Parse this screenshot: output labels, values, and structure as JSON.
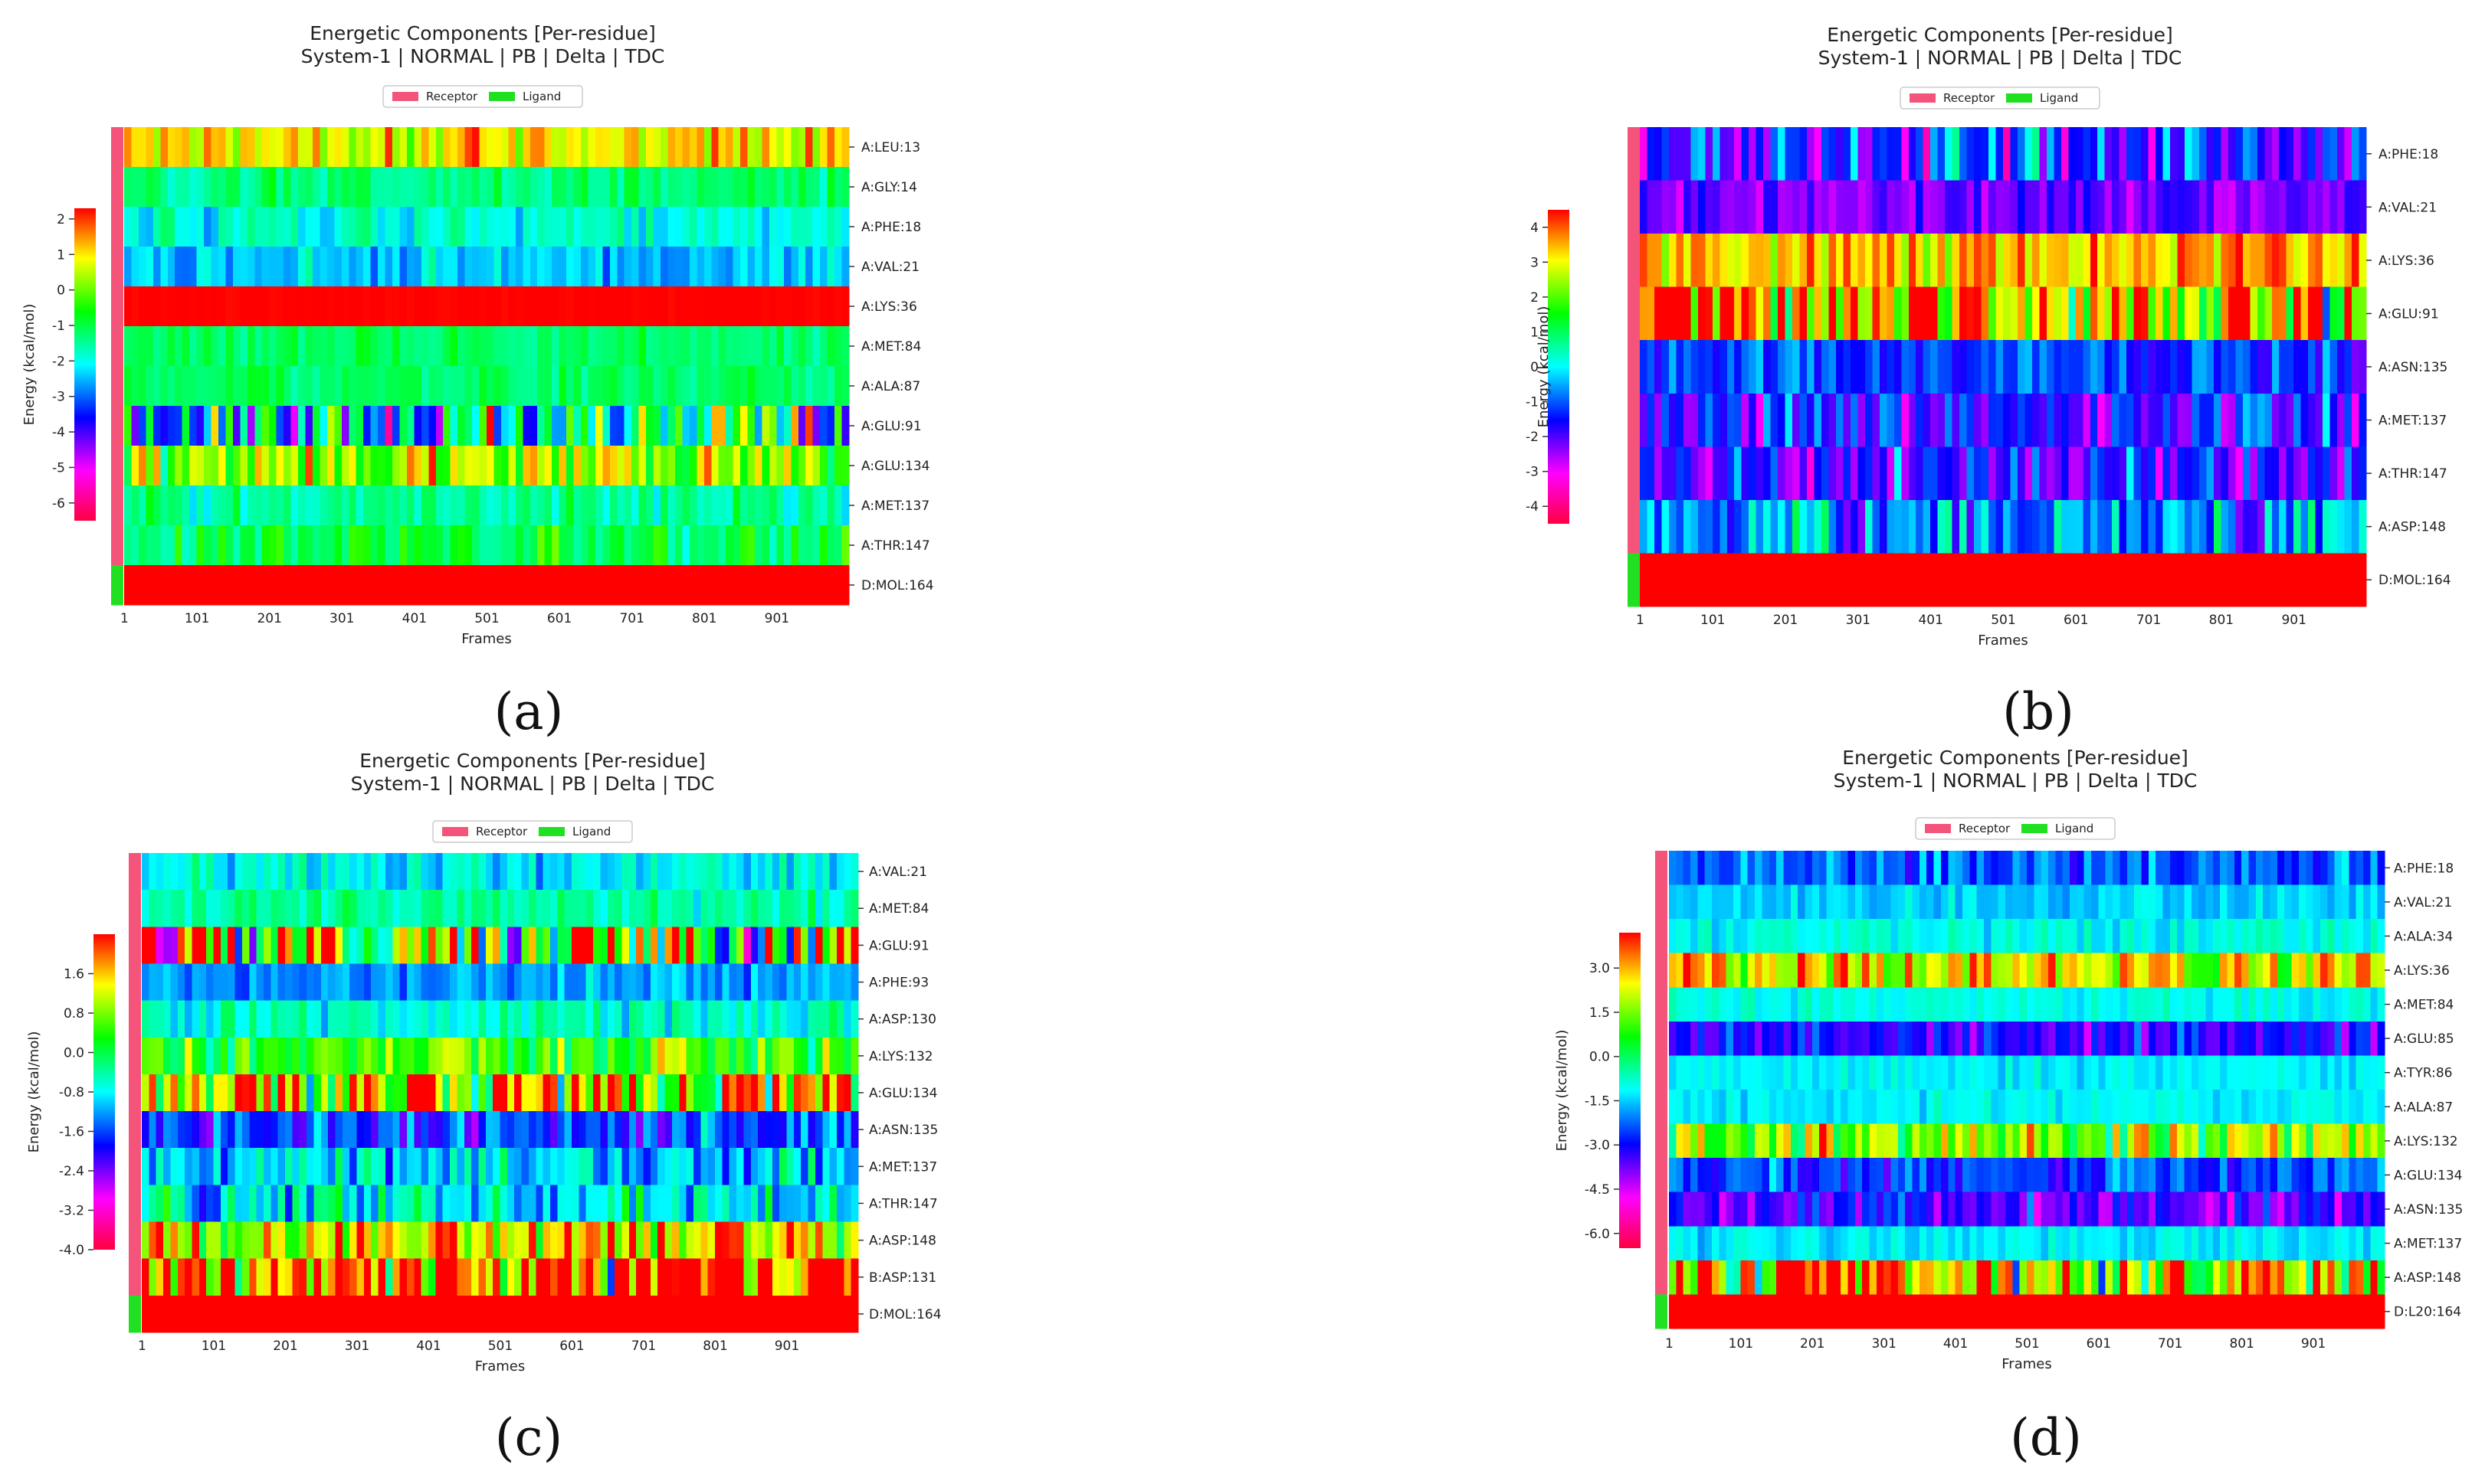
{
  "chart_data": [
    {
      "panel": "a",
      "type": "heatmap",
      "caption": "(a)",
      "title": "Energetic Components [Per-residue]",
      "subtitle": "System-1 | NORMAL | PB | Delta | TDC",
      "legend": [
        "Receptor",
        "Ligand"
      ],
      "legend_position": "top-center",
      "xlabel": "Frames",
      "ylabel": "Energy (kcal/mol)",
      "x_ticks": [
        "1",
        "101",
        "201",
        "301",
        "401",
        "501",
        "601",
        "701",
        "801",
        "901"
      ],
      "frames": 1000,
      "colorbar_ticks": [
        "2",
        "1",
        "0",
        "-1",
        "-2",
        "-3",
        "-4",
        "-5",
        "-6"
      ],
      "vmin": -6.5,
      "vmax": 2.3,
      "rows": [
        {
          "label": "A:LEU:13",
          "group": "Receptor",
          "mean": 1.0,
          "spread": 1.0
        },
        {
          "label": "A:GLY:14",
          "group": "Receptor",
          "mean": -1.3,
          "spread": 0.5
        },
        {
          "label": "A:PHE:18",
          "group": "Receptor",
          "mean": -1.9,
          "spread": 0.6
        },
        {
          "label": "A:VAL:21",
          "group": "Receptor",
          "mean": -2.4,
          "spread": 0.6
        },
        {
          "label": "A:LYS:36",
          "group": "Receptor",
          "mean": 2.3,
          "spread": 0.05
        },
        {
          "label": "A:MET:84",
          "group": "Receptor",
          "mean": -1.2,
          "spread": 0.4
        },
        {
          "label": "A:ALA:87",
          "group": "Receptor",
          "mean": -1.2,
          "spread": 0.4
        },
        {
          "label": "A:GLU:91",
          "group": "Receptor",
          "mean": -2.0,
          "spread": 3.0
        },
        {
          "label": "A:GLU:134",
          "group": "Receptor",
          "mean": 0.3,
          "spread": 1.5
        },
        {
          "label": "A:MET:137",
          "group": "Receptor",
          "mean": -1.5,
          "spread": 0.6
        },
        {
          "label": "A:THR:147",
          "group": "Receptor",
          "mean": -1.0,
          "spread": 0.9
        },
        {
          "label": "D:MOL:164",
          "group": "Ligand",
          "mean": 2.3,
          "spread": 0.0
        }
      ]
    },
    {
      "panel": "b",
      "type": "heatmap",
      "caption": "(b)",
      "title": "Energetic Components [Per-residue]",
      "subtitle": "System-1 | NORMAL | PB | Delta | TDC",
      "legend": [
        "Receptor",
        "Ligand"
      ],
      "legend_position": "top-center",
      "xlabel": "Frames",
      "ylabel": "Energy (kcal/mol)",
      "x_ticks": [
        "1",
        "101",
        "201",
        "301",
        "401",
        "501",
        "601",
        "701",
        "801",
        "901"
      ],
      "frames": 1000,
      "colorbar_ticks": [
        "4",
        "3",
        "2",
        "1",
        "0",
        "-1",
        "-2",
        "-3",
        "-4"
      ],
      "vmin": -4.5,
      "vmax": 4.5,
      "rows": [
        {
          "label": "A:PHE:18",
          "group": "Receptor",
          "mean": -1.5,
          "spread": 1.5
        },
        {
          "label": "A:VAL:21",
          "group": "Receptor",
          "mean": -2.2,
          "spread": 0.6
        },
        {
          "label": "A:LYS:36",
          "group": "Receptor",
          "mean": 3.5,
          "spread": 1.2
        },
        {
          "label": "A:GLU:91",
          "group": "Receptor",
          "mean": 3.0,
          "spread": 3.0
        },
        {
          "label": "A:ASN:135",
          "group": "Receptor",
          "mean": -1.2,
          "spread": 0.8
        },
        {
          "label": "A:MET:137",
          "group": "Receptor",
          "mean": -1.6,
          "spread": 1.2
        },
        {
          "label": "A:THR:147",
          "group": "Receptor",
          "mean": -1.8,
          "spread": 1.3
        },
        {
          "label": "A:ASP:148",
          "group": "Receptor",
          "mean": -0.6,
          "spread": 1.5
        },
        {
          "label": "D:MOL:164",
          "group": "Ligand",
          "mean": 4.5,
          "spread": 0.0
        }
      ]
    },
    {
      "panel": "c",
      "type": "heatmap",
      "caption": "(c)",
      "title": "Energetic Components [Per-residue]",
      "subtitle": "System-1 | NORMAL | PB | Delta | TDC",
      "legend": [
        "Receptor",
        "Ligand"
      ],
      "legend_position": "top-center",
      "xlabel": "Frames",
      "ylabel": "Energy (kcal/mol)",
      "x_ticks": [
        "1",
        "101",
        "201",
        "301",
        "401",
        "501",
        "601",
        "701",
        "801",
        "901"
      ],
      "frames": 1000,
      "colorbar_ticks": [
        "1.6",
        "0.8",
        "0.0",
        "-0.8",
        "-1.6",
        "-2.4",
        "-3.2",
        "-4.0"
      ],
      "vmin": -4.0,
      "vmax": 2.4,
      "rows": [
        {
          "label": "A:VAL:21",
          "group": "Receptor",
          "mean": -0.8,
          "spread": 0.5
        },
        {
          "label": "A:MET:84",
          "group": "Receptor",
          "mean": -0.4,
          "spread": 0.4
        },
        {
          "label": "A:GLU:91",
          "group": "Receptor",
          "mean": 0.5,
          "spread": 3.0
        },
        {
          "label": "A:PHE:93",
          "group": "Receptor",
          "mean": -1.2,
          "spread": 0.4
        },
        {
          "label": "A:ASP:130",
          "group": "Receptor",
          "mean": -0.6,
          "spread": 0.5
        },
        {
          "label": "A:LYS:132",
          "group": "Receptor",
          "mean": 0.5,
          "spread": 0.8
        },
        {
          "label": "A:GLU:134",
          "group": "Receptor",
          "mean": 1.4,
          "spread": 2.2
        },
        {
          "label": "A:ASN:135",
          "group": "Receptor",
          "mean": -1.6,
          "spread": 0.8
        },
        {
          "label": "A:MET:137",
          "group": "Receptor",
          "mean": -1.0,
          "spread": 0.8
        },
        {
          "label": "A:THR:147",
          "group": "Receptor",
          "mean": -0.8,
          "spread": 0.9
        },
        {
          "label": "A:ASP:148",
          "group": "Receptor",
          "mean": 1.3,
          "spread": 1.4
        },
        {
          "label": "B:ASP:131",
          "group": "Receptor",
          "mean": 2.0,
          "spread": 2.2
        },
        {
          "label": "D:MOL:164",
          "group": "Ligand",
          "mean": 2.4,
          "spread": 0.0
        }
      ]
    },
    {
      "panel": "d",
      "type": "heatmap",
      "caption": "(d)",
      "title": "Energetic Components [Per-residue]",
      "subtitle": "System-1 | NORMAL | PB | Delta | TDC",
      "legend": [
        "Receptor",
        "Ligand"
      ],
      "legend_position": "top-center",
      "xlabel": "Frames",
      "ylabel": "Energy (kcal/mol)",
      "x_ticks": [
        "1",
        "101",
        "201",
        "301",
        "401",
        "501",
        "601",
        "701",
        "801",
        "901"
      ],
      "frames": 1000,
      "colorbar_ticks": [
        "3.0",
        "1.5",
        "0.0",
        "-1.5",
        "-3.0",
        "-4.5",
        "-6.0"
      ],
      "vmin": -6.5,
      "vmax": 4.2,
      "rows": [
        {
          "label": "A:PHE:18",
          "group": "Receptor",
          "mean": -2.2,
          "spread": 0.9
        },
        {
          "label": "A:VAL:21",
          "group": "Receptor",
          "mean": -1.5,
          "spread": 0.5
        },
        {
          "label": "A:ALA:34",
          "group": "Receptor",
          "mean": -1.0,
          "spread": 0.5
        },
        {
          "label": "A:LYS:36",
          "group": "Receptor",
          "mean": 2.4,
          "spread": 1.6
        },
        {
          "label": "A:MET:84",
          "group": "Receptor",
          "mean": -1.0,
          "spread": 0.4
        },
        {
          "label": "A:GLU:85",
          "group": "Receptor",
          "mean": -3.2,
          "spread": 1.0
        },
        {
          "label": "A:TYR:86",
          "group": "Receptor",
          "mean": -1.2,
          "spread": 0.4
        },
        {
          "label": "A:ALA:87",
          "group": "Receptor",
          "mean": -1.2,
          "spread": 0.4
        },
        {
          "label": "A:LYS:132",
          "group": "Receptor",
          "mean": 1.8,
          "spread": 1.8
        },
        {
          "label": "A:GLU:134",
          "group": "Receptor",
          "mean": -2.5,
          "spread": 1.0
        },
        {
          "label": "A:ASN:135",
          "group": "Receptor",
          "mean": -3.4,
          "spread": 1.2
        },
        {
          "label": "A:MET:137",
          "group": "Receptor",
          "mean": -1.2,
          "spread": 0.5
        },
        {
          "label": "A:ASP:148",
          "group": "Receptor",
          "mean": 2.5,
          "spread": 3.5
        },
        {
          "label": "D:L20:164",
          "group": "Ligand",
          "mean": 4.2,
          "spread": 0.0
        }
      ]
    }
  ],
  "colors": {
    "receptor": "#f4547a",
    "ligand": "#21e021",
    "text": "#222222",
    "legend_border": "#cccccc"
  }
}
